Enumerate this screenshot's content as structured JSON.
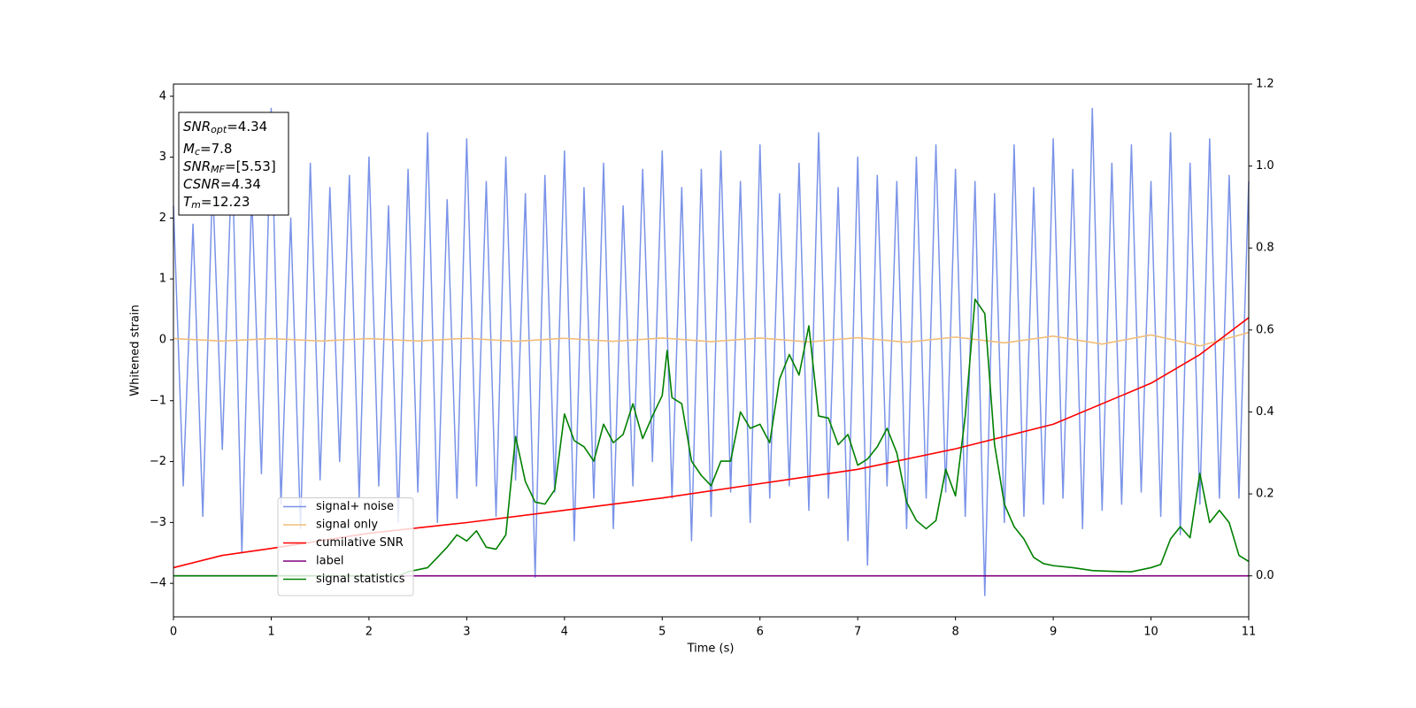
{
  "chart_data": {
    "type": "line",
    "xlabel": "Time (s)",
    "ylabel": "Whitened strain",
    "xlim": [
      0,
      11
    ],
    "xticks": [
      0,
      1,
      2,
      3,
      4,
      5,
      6,
      7,
      8,
      9,
      10,
      11
    ],
    "ylim": [
      -4.55,
      4.2
    ],
    "yticks": [
      {
        "value": -4,
        "label": "−4"
      },
      {
        "value": -3,
        "label": "−3"
      },
      {
        "value": -2,
        "label": "−2"
      },
      {
        "value": -1,
        "label": "−1"
      },
      0,
      1,
      2,
      3,
      4
    ],
    "y2lim": [
      -0.1,
      1.2
    ],
    "y2ticks": [
      {
        "value": 0,
        "label": "0.0"
      },
      0.2,
      0.4,
      0.6,
      0.8,
      {
        "value": 1,
        "label": "1.0"
      },
      1.2
    ],
    "legend": "lower left",
    "annotation": [
      {
        "name": "SNR",
        "sub": "opt",
        "text": "=4.34"
      },
      {
        "name": "M",
        "sub": "c",
        "text": "=7.8"
      },
      {
        "name": "SNR",
        "sub": "MF",
        "text": "=[5.53]"
      },
      {
        "name": "CSNR",
        "text": "=4.34"
      },
      {
        "name": "T",
        "sub": "m",
        "text": "=12.23"
      }
    ],
    "series": [
      {
        "name": "signal+ noise",
        "color": "#7a93e8",
        "x": [
          0,
          0.1,
          0.2,
          0.3,
          0.4,
          0.5,
          0.6,
          0.7,
          0.8,
          0.9,
          1,
          1.1,
          1.2,
          1.3,
          1.4,
          1.5,
          1.6,
          1.7,
          1.8,
          1.9,
          2,
          2.1,
          2.2,
          2.3,
          2.4,
          2.5,
          2.6,
          2.7,
          2.8,
          2.9,
          3,
          3.1,
          3.2,
          3.3,
          3.4,
          3.5,
          3.6,
          3.7,
          3.8,
          3.9,
          4,
          4.1,
          4.2,
          4.3,
          4.4,
          4.5,
          4.6,
          4.7,
          4.8,
          4.9,
          5,
          5.1,
          5.2,
          5.3,
          5.4,
          5.5,
          5.6,
          5.7,
          5.8,
          5.9,
          6,
          6.1,
          6.2,
          6.3,
          6.4,
          6.5,
          6.6,
          6.7,
          6.8,
          6.9,
          7,
          7.1,
          7.2,
          7.3,
          7.4,
          7.5,
          7.6,
          7.7,
          7.8,
          7.9,
          8,
          8.1,
          8.2,
          8.3,
          8.4,
          8.5,
          8.6,
          8.7,
          8.8,
          8.9,
          9,
          9.1,
          9.2,
          9.3,
          9.4,
          9.5,
          9.6,
          9.7,
          9.8,
          9.9,
          10,
          10.1,
          10.2,
          10.3,
          10.4,
          10.5,
          10.6,
          10.7,
          10.8,
          10.9,
          11
        ],
        "values": [
          2.2,
          -2.4,
          1.9,
          -2.9,
          2.6,
          -1.8,
          3.1,
          -3.5,
          2.4,
          -2.2,
          3.8,
          -2.7,
          2.0,
          -3.1,
          2.9,
          -2.3,
          2.5,
          -2.0,
          2.7,
          -2.6,
          3.0,
          -2.4,
          2.2,
          -3.0,
          2.8,
          -2.5,
          3.4,
          -3.0,
          2.3,
          -2.6,
          3.3,
          -2.4,
          2.6,
          -2.9,
          3.0,
          -2.3,
          2.4,
          -3.9,
          2.7,
          -2.5,
          3.1,
          -3.3,
          2.5,
          -2.6,
          2.9,
          -3.1,
          2.2,
          -2.4,
          2.8,
          -2.0,
          3.1,
          -2.6,
          2.5,
          -3.3,
          2.8,
          -2.9,
          3.1,
          -2.5,
          2.6,
          -3.0,
          3.2,
          -2.6,
          2.4,
          -2.4,
          2.9,
          -2.8,
          3.4,
          -2.6,
          2.5,
          -3.3,
          3.0,
          -3.7,
          2.7,
          -2.4,
          2.6,
          -3.1,
          3.0,
          -2.6,
          3.2,
          -2.5,
          2.8,
          -2.9,
          2.6,
          -4.2,
          2.4,
          -3.0,
          3.2,
          -2.9,
          2.5,
          -2.7,
          3.3,
          -2.6,
          2.8,
          -3.1,
          3.8,
          -2.8,
          2.9,
          -2.7,
          3.2,
          -2.5,
          2.6,
          -2.9,
          3.4,
          -3.2,
          2.9,
          -2.7,
          3.3,
          -2.6,
          2.7,
          -2.6,
          2.6
        ]
      },
      {
        "name": "signal only",
        "color": "#f0bd7a",
        "x": [
          0,
          0.5,
          1,
          1.5,
          2,
          2.5,
          3,
          3.5,
          4,
          4.5,
          5,
          5.5,
          6,
          6.5,
          7,
          7.5,
          8,
          8.5,
          9,
          9.5,
          10,
          10.5,
          11
        ],
        "values": [
          0.02,
          -0.02,
          0.02,
          -0.02,
          0.02,
          -0.02,
          0.025,
          -0.025,
          0.025,
          -0.025,
          0.03,
          -0.03,
          0.03,
          -0.035,
          0.035,
          -0.04,
          0.045,
          -0.05,
          0.06,
          -0.07,
          0.08,
          -0.1,
          0.12
        ]
      },
      {
        "name": "cumilative SNR",
        "color": "#ff0000",
        "axis": "y2",
        "x": [
          0,
          0.5,
          1,
          2,
          3,
          4,
          5,
          6,
          7,
          8,
          9,
          10,
          10.5,
          11
        ],
        "values": [
          0.02,
          0.05,
          0.067,
          0.104,
          0.13,
          0.16,
          0.19,
          0.225,
          0.26,
          0.31,
          0.37,
          0.47,
          0.54,
          0.63
        ]
      },
      {
        "name": "label",
        "color": "#800080",
        "axis": "y2",
        "x": [
          0,
          11
        ],
        "values": [
          0,
          0
        ]
      },
      {
        "name": "signal statistics",
        "color": "#008000",
        "axis": "y2",
        "x": [
          0,
          2.3,
          2.4,
          2.6,
          2.8,
          2.9,
          3.0,
          3.1,
          3.2,
          3.3,
          3.4,
          3.5,
          3.6,
          3.7,
          3.8,
          3.9,
          4.0,
          4.1,
          4.2,
          4.3,
          4.4,
          4.5,
          4.6,
          4.7,
          4.8,
          4.9,
          5.0,
          5.05,
          5.1,
          5.2,
          5.3,
          5.4,
          5.5,
          5.6,
          5.7,
          5.8,
          5.9,
          6.0,
          6.1,
          6.2,
          6.3,
          6.4,
          6.5,
          6.6,
          6.7,
          6.8,
          6.9,
          7.0,
          7.1,
          7.2,
          7.3,
          7.4,
          7.5,
          7.6,
          7.7,
          7.8,
          7.9,
          8.0,
          8.1,
          8.2,
          8.3,
          8.4,
          8.5,
          8.6,
          8.7,
          8.8,
          8.9,
          9.0,
          9.2,
          9.4,
          9.6,
          9.8,
          10.0,
          10.1,
          10.2,
          10.3,
          10.4,
          10.5,
          10.6,
          10.7,
          10.8,
          10.9,
          11.0
        ],
        "values": [
          0,
          0,
          0.01,
          0.02,
          0.07,
          0.1,
          0.085,
          0.11,
          0.07,
          0.065,
          0.1,
          0.34,
          0.23,
          0.18,
          0.175,
          0.21,
          0.395,
          0.33,
          0.315,
          0.28,
          0.37,
          0.325,
          0.345,
          0.42,
          0.335,
          0.39,
          0.44,
          0.55,
          0.435,
          0.42,
          0.28,
          0.245,
          0.22,
          0.28,
          0.28,
          0.4,
          0.36,
          0.37,
          0.325,
          0.48,
          0.54,
          0.49,
          0.61,
          0.39,
          0.385,
          0.32,
          0.345,
          0.27,
          0.285,
          0.315,
          0.36,
          0.3,
          0.18,
          0.135,
          0.115,
          0.135,
          0.26,
          0.195,
          0.39,
          0.675,
          0.64,
          0.32,
          0.175,
          0.12,
          0.09,
          0.045,
          0.03,
          0.025,
          0.02,
          0.013,
          0.011,
          0.01,
          0.02,
          0.028,
          0.09,
          0.12,
          0.093,
          0.25,
          0.13,
          0.16,
          0.13,
          0.05,
          0.035
        ]
      }
    ]
  }
}
